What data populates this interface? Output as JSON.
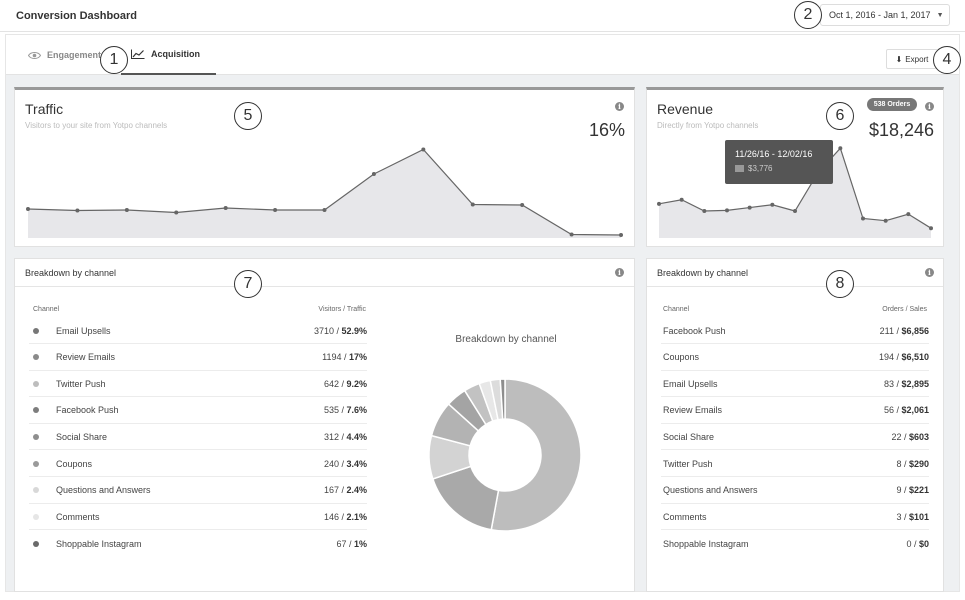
{
  "header": {
    "title": "Conversion Dashboard",
    "date_range": "Oct 1, 2016 - Jan 1, 2017"
  },
  "tabs": [
    {
      "label": "Engagement",
      "icon": "eye-icon",
      "active": false
    },
    {
      "label": "Acquisition",
      "icon": "line-chart-icon",
      "active": true
    }
  ],
  "export_label": "Export",
  "callouts": [
    "1",
    "2",
    "4",
    "5",
    "6",
    "7",
    "8"
  ],
  "traffic": {
    "title": "Traffic",
    "subtitle": "Visitors to your site from Yotpo channels",
    "value": "16%",
    "sparkline": [
      0.54,
      0.51,
      0.52,
      0.47,
      0.56,
      0.52,
      0.52,
      1.24,
      1.73,
      0.63,
      0.62,
      0.03,
      0.02
    ]
  },
  "revenue": {
    "title": "Revenue",
    "subtitle": "Directly from Yotpo channels",
    "orders_badge": "538 Orders",
    "value": "$18,246",
    "tooltip_range": "11/26/16 - 12/02/16",
    "tooltip_value": "$3,776",
    "sparkline": [
      1.03,
      1.16,
      0.8,
      0.82,
      0.91,
      1.0,
      0.8,
      2.01,
      2.81,
      0.56,
      0.49,
      0.7,
      0.25
    ]
  },
  "breakdown_traffic": {
    "title": "Breakdown by channel",
    "col_channel": "Channel",
    "col_value": "Visitors / Traffic",
    "rows": [
      {
        "name": "Email Upsells",
        "count": "3710 / ",
        "pct": "52.9%",
        "color": "#777777"
      },
      {
        "name": "Review Emails",
        "count": "1194 / ",
        "pct": "17%",
        "color": "#8a8a8a"
      },
      {
        "name": "Twitter Push",
        "count": "642 / ",
        "pct": "9.2%",
        "color": "#bdbdbd"
      },
      {
        "name": "Facebook Push",
        "count": "535 / ",
        "pct": "7.6%",
        "color": "#7d7d7d"
      },
      {
        "name": "Social Share",
        "count": "312 / ",
        "pct": "4.4%",
        "color": "#8e8e8e"
      },
      {
        "name": "Coupons",
        "count": "240 / ",
        "pct": "3.4%",
        "color": "#9a9a9a"
      },
      {
        "name": "Questions and Answers",
        "count": "167 / ",
        "pct": "2.4%",
        "color": "#d8d8d8"
      },
      {
        "name": "Comments",
        "count": "146 / ",
        "pct": "2.1%",
        "color": "#e6e6e6"
      },
      {
        "name": "Shoppable Instagram",
        "count": "67 / ",
        "pct": "1%",
        "color": "#6a6a6a"
      }
    ]
  },
  "donut": {
    "title": "Breakdown by channel",
    "slices": [
      {
        "value": 52.9,
        "color": "#bdbdbd"
      },
      {
        "value": 17,
        "color": "#a9a9a9"
      },
      {
        "value": 9.2,
        "color": "#d3d3d3"
      },
      {
        "value": 7.6,
        "color": "#b3b3b3"
      },
      {
        "value": 4.4,
        "color": "#a4a4a4"
      },
      {
        "value": 3.4,
        "color": "#c2c2c2"
      },
      {
        "value": 2.4,
        "color": "#e7e7e7"
      },
      {
        "value": 2.1,
        "color": "#dcdcdc"
      },
      {
        "value": 1.0,
        "color": "#8d8d8d"
      }
    ]
  },
  "breakdown_revenue": {
    "title": "Breakdown by channel",
    "col_channel": "Channel",
    "col_value": "Orders / Sales",
    "rows": [
      {
        "name": "Facebook Push",
        "count": "211 / ",
        "pct": "$6,856"
      },
      {
        "name": "Coupons",
        "count": "194 / ",
        "pct": "$6,510"
      },
      {
        "name": "Email Upsells",
        "count": "83 / ",
        "pct": "$2,895"
      },
      {
        "name": "Review Emails",
        "count": "56 / ",
        "pct": "$2,061"
      },
      {
        "name": "Social Share",
        "count": "22 / ",
        "pct": "$603"
      },
      {
        "name": "Twitter Push",
        "count": "8 / ",
        "pct": "$290"
      },
      {
        "name": "Questions and Answers",
        "count": "9 / ",
        "pct": "$221"
      },
      {
        "name": "Comments",
        "count": "3 / ",
        "pct": "$101"
      },
      {
        "name": "Shoppable Instagram",
        "count": "0 / ",
        "pct": "$0"
      }
    ]
  }
}
